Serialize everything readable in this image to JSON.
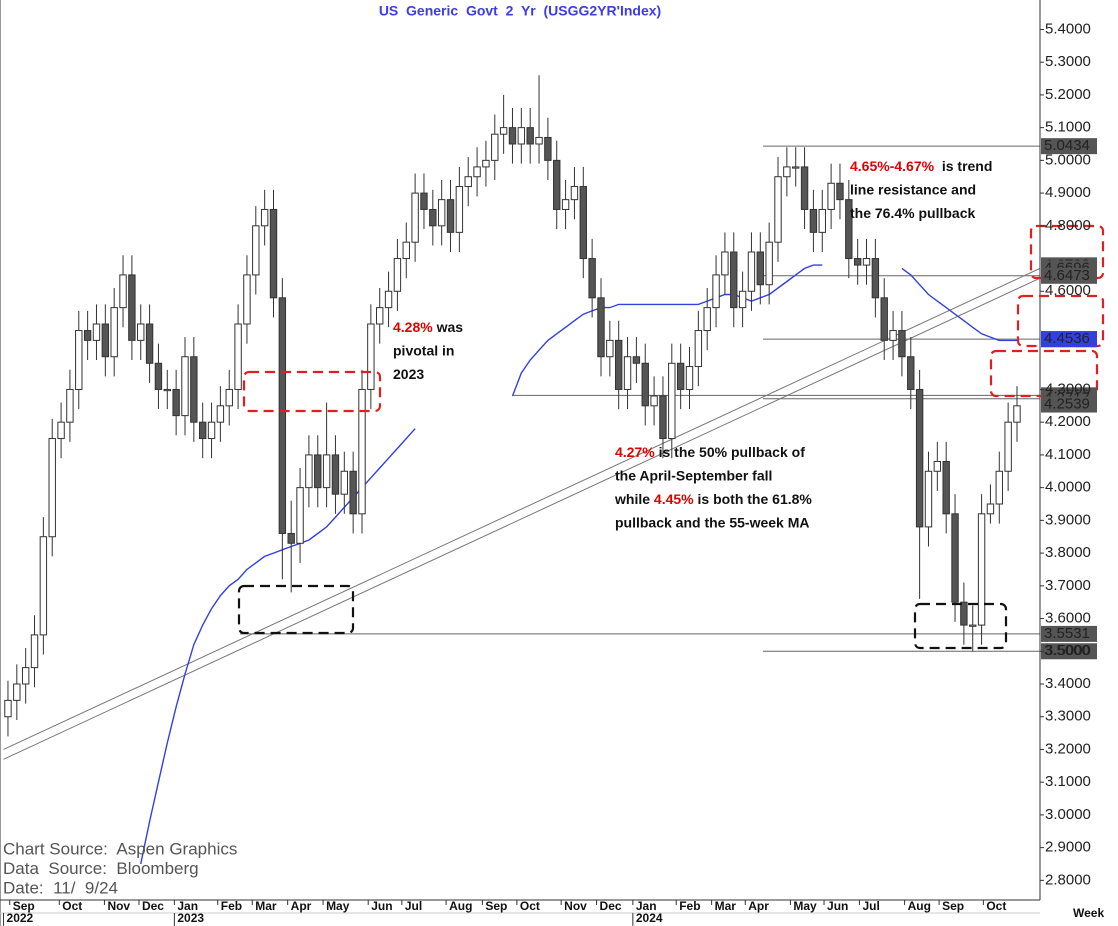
{
  "chart_data": {
    "type": "candlestick",
    "title": "US  Generic  Govt  2  Yr  (USGG2YR'Index)",
    "period_label": "Week",
    "sources": [
      "Chart Source:  Aspen Graphics",
      "Data  Source:  Bloomberg",
      "Date:  11/  9/24"
    ],
    "up_color": "#ffffff",
    "down_color": "#555555",
    "ma_color": "#3340e0",
    "open": [
      3.3,
      3.35,
      3.4,
      3.45,
      3.55,
      3.85,
      4.15,
      4.2,
      4.3,
      4.48,
      4.45,
      4.5,
      4.4,
      4.55,
      4.65,
      4.45,
      4.5,
      4.38,
      4.3,
      4.3,
      4.22,
      4.4,
      4.2,
      4.15,
      4.2,
      4.25,
      4.3,
      4.5,
      4.65,
      4.8,
      4.85,
      4.58,
      3.86,
      3.83,
      4.0,
      4.1,
      4.0,
      4.1,
      3.98,
      4.05,
      3.92,
      4.3,
      4.5,
      4.55,
      4.6,
      4.7,
      4.75,
      4.9,
      4.85,
      4.8,
      4.88,
      4.78,
      4.92,
      4.95,
      4.98,
      5.0,
      5.08,
      5.1,
      5.05,
      5.1,
      5.05,
      5.07,
      5.0,
      4.85,
      4.88,
      4.92,
      4.7,
      4.58,
      4.4,
      4.45,
      4.3,
      4.4,
      4.38,
      4.25,
      4.28,
      4.15,
      4.38,
      4.3,
      4.37,
      4.48,
      4.55,
      4.65,
      4.72,
      4.55,
      4.6,
      4.72,
      4.62,
      4.75,
      4.95,
      4.98,
      4.98,
      4.85,
      4.78,
      4.85,
      4.93,
      4.88,
      4.7,
      4.68,
      4.7,
      4.58,
      4.45,
      4.48,
      4.4,
      4.3,
      3.88,
      4.05,
      4.08,
      3.92,
      3.65,
      3.58,
      3.58,
      3.92,
      3.95,
      4.05,
      4.2
    ],
    "high": [
      3.41,
      3.46,
      3.51,
      3.61,
      3.91,
      4.21,
      4.26,
      4.36,
      4.54,
      4.54,
      4.56,
      4.56,
      4.61,
      4.71,
      4.71,
      4.56,
      4.56,
      4.44,
      4.36,
      4.36,
      4.46,
      4.46,
      4.26,
      4.26,
      4.31,
      4.36,
      4.56,
      4.71,
      4.86,
      4.91,
      4.91,
      4.64,
      3.96,
      4.06,
      4.16,
      4.16,
      4.26,
      4.16,
      4.11,
      4.11,
      4.36,
      4.56,
      4.61,
      4.66,
      4.76,
      4.81,
      4.96,
      4.96,
      4.91,
      4.94,
      4.94,
      4.98,
      5.01,
      5.04,
      5.06,
      5.14,
      5.2,
      5.16,
      5.16,
      5.16,
      5.26,
      5.13,
      5.06,
      4.94,
      4.98,
      4.98,
      4.76,
      4.64,
      4.51,
      4.51,
      4.46,
      4.46,
      4.44,
      4.34,
      4.34,
      4.44,
      4.44,
      4.43,
      4.54,
      4.61,
      4.71,
      4.78,
      4.78,
      4.66,
      4.78,
      4.78,
      4.81,
      5.01,
      5.04,
      5.04,
      5.04,
      4.91,
      4.91,
      4.99,
      4.99,
      4.94,
      4.76,
      4.76,
      4.76,
      4.64,
      4.54,
      4.54,
      4.46,
      4.36,
      4.11,
      4.14,
      4.14,
      3.98,
      3.71,
      3.64,
      3.98,
      4.01,
      4.11,
      4.26,
      4.31
    ],
    "low": [
      3.24,
      3.29,
      3.34,
      3.39,
      3.49,
      3.79,
      4.09,
      4.14,
      4.24,
      4.39,
      4.39,
      4.34,
      4.34,
      4.49,
      4.39,
      4.39,
      4.32,
      4.24,
      4.24,
      4.16,
      4.16,
      4.14,
      4.09,
      4.09,
      4.14,
      4.19,
      4.24,
      4.44,
      4.59,
      4.74,
      4.52,
      3.72,
      3.68,
      3.77,
      3.94,
      3.94,
      3.94,
      3.92,
      3.92,
      3.86,
      3.86,
      4.24,
      4.44,
      4.49,
      4.54,
      4.64,
      4.69,
      4.79,
      4.74,
      4.74,
      4.72,
      4.72,
      4.86,
      4.89,
      4.92,
      4.94,
      5.02,
      4.99,
      4.99,
      4.99,
      4.99,
      4.94,
      4.79,
      4.79,
      4.82,
      4.64,
      4.52,
      4.34,
      4.34,
      4.24,
      4.24,
      4.32,
      4.19,
      4.19,
      4.09,
      4.09,
      4.24,
      4.24,
      4.31,
      4.42,
      4.49,
      4.59,
      4.49,
      4.49,
      4.54,
      4.56,
      4.56,
      4.69,
      4.89,
      4.92,
      4.79,
      4.72,
      4.72,
      4.79,
      4.82,
      4.64,
      4.62,
      4.62,
      4.52,
      4.39,
      4.39,
      4.34,
      4.24,
      3.66,
      3.82,
      3.99,
      3.86,
      3.59,
      3.52,
      3.5,
      3.52,
      3.89,
      3.89,
      3.99,
      4.14
    ],
    "close": [
      3.35,
      3.4,
      3.45,
      3.55,
      3.85,
      4.15,
      4.2,
      4.3,
      4.48,
      4.45,
      4.5,
      4.4,
      4.55,
      4.65,
      4.45,
      4.5,
      4.38,
      4.3,
      4.3,
      4.22,
      4.4,
      4.2,
      4.15,
      4.2,
      4.25,
      4.3,
      4.5,
      4.65,
      4.8,
      4.85,
      4.58,
      3.86,
      3.83,
      4.0,
      4.1,
      4.0,
      4.1,
      3.98,
      4.05,
      3.92,
      4.3,
      4.5,
      4.55,
      4.6,
      4.7,
      4.75,
      4.9,
      4.85,
      4.8,
      4.88,
      4.78,
      4.92,
      4.95,
      4.98,
      5.0,
      5.08,
      5.1,
      5.05,
      5.1,
      5.05,
      5.07,
      5.0,
      4.85,
      4.88,
      4.92,
      4.7,
      4.58,
      4.4,
      4.45,
      4.3,
      4.4,
      4.38,
      4.25,
      4.28,
      4.15,
      4.38,
      4.3,
      4.37,
      4.48,
      4.55,
      4.65,
      4.72,
      4.55,
      4.6,
      4.72,
      4.62,
      4.75,
      4.95,
      4.98,
      4.98,
      4.85,
      4.78,
      4.85,
      4.93,
      4.88,
      4.7,
      4.68,
      4.7,
      4.58,
      4.45,
      4.48,
      4.4,
      4.3,
      3.88,
      4.05,
      4.08,
      3.92,
      3.65,
      3.58,
      3.58,
      3.92,
      3.95,
      4.05,
      4.2,
      4.25
    ],
    "ma": [
      null,
      null,
      null,
      null,
      null,
      null,
      null,
      null,
      null,
      null,
      null,
      null,
      null,
      null,
      null,
      2.85,
      2.98,
      3.1,
      3.22,
      3.33,
      3.43,
      3.52,
      3.58,
      3.63,
      3.67,
      3.7,
      3.72,
      3.75,
      3.77,
      3.79,
      3.8,
      3.81,
      3.82,
      3.83,
      3.84,
      3.86,
      3.88,
      3.91,
      3.94,
      3.97,
      4.0,
      4.03,
      4.06,
      4.09,
      4.12,
      4.15,
      4.18,
      null,
      null,
      null,
      null,
      null,
      null,
      null,
      null,
      null,
      null,
      4.28,
      4.35,
      4.39,
      4.42,
      4.45,
      4.47,
      4.49,
      4.51,
      4.53,
      4.54,
      4.55,
      4.55,
      4.56,
      4.56,
      4.56,
      4.56,
      4.56,
      4.56,
      4.56,
      4.56,
      4.56,
      4.56,
      4.57,
      4.58,
      4.59,
      4.59,
      4.58,
      4.57,
      4.58,
      4.59,
      4.61,
      4.63,
      4.65,
      4.67,
      4.68,
      4.68,
      null,
      null,
      null,
      null,
      null,
      null,
      null,
      null,
      4.67,
      4.65,
      4.62,
      4.59,
      4.57,
      4.55,
      4.53,
      4.51,
      4.49,
      4.47,
      4.46,
      4.45,
      4.45,
      4.45
    ],
    "trendlines": [
      {
        "x": [
          -0.5,
          116.6
        ],
        "y": [
          3.2,
          4.67
        ]
      },
      {
        "x": [
          -0.5,
          116.6
        ],
        "y": [
          3.17,
          4.64
        ]
      }
    ],
    "xlim": [
      -0.9,
      116.6
    ],
    "ylim": [
      2.74,
      5.49
    ],
    "xticks": [
      {
        "value": 0.2,
        "label": "Sep"
      },
      {
        "value": 5.8,
        "label": "Oct"
      },
      {
        "value": 10.9,
        "label": "Nov"
      },
      {
        "value": 14.8,
        "label": "Dec"
      },
      {
        "value": 18.8,
        "label": "Jan"
      },
      {
        "value": 23.7,
        "label": "Feb"
      },
      {
        "value": 27.6,
        "label": "Mar"
      },
      {
        "value": 31.6,
        "label": "Apr"
      },
      {
        "value": 35.6,
        "label": "May"
      },
      {
        "value": 40.7,
        "label": "Jun"
      },
      {
        "value": 44.5,
        "label": "Jul"
      },
      {
        "value": 49.5,
        "label": "Aug"
      },
      {
        "value": 53.6,
        "label": "Sep"
      },
      {
        "value": 57.5,
        "label": "Oct"
      },
      {
        "value": 62.5,
        "label": "Nov"
      },
      {
        "value": 66.5,
        "label": "Dec"
      },
      {
        "value": 70.6,
        "label": "Jan"
      },
      {
        "value": 75.5,
        "label": "Feb"
      },
      {
        "value": 79.5,
        "label": "Mar"
      },
      {
        "value": 83.3,
        "label": "Apr"
      },
      {
        "value": 88.4,
        "label": "May"
      },
      {
        "value": 92.2,
        "label": "Jun"
      },
      {
        "value": 96.2,
        "label": "Jul"
      },
      {
        "value": 101.3,
        "label": "Aug"
      },
      {
        "value": 105.2,
        "label": "Sep"
      },
      {
        "value": 110.2,
        "label": "Oct"
      }
    ],
    "year_ticks": [
      {
        "value": -0.5,
        "label": "2022"
      },
      {
        "value": 18.8,
        "label": "2023"
      },
      {
        "value": 70.6,
        "label": "2024"
      }
    ],
    "yticks": [
      {
        "value": 5.4,
        "label": "5.4000"
      },
      {
        "value": 5.3,
        "label": "5.3000"
      },
      {
        "value": 5.2,
        "label": "5.2000"
      },
      {
        "value": 5.1,
        "label": "5.1000"
      },
      {
        "value": 5.0,
        "label": "5.0000"
      },
      {
        "value": 4.9,
        "label": "4.9000"
      },
      {
        "value": 4.8,
        "label": "4.8000"
      },
      {
        "value": 4.6,
        "label": "4.6000"
      },
      {
        "value": 4.3,
        "label": "4.3000"
      },
      {
        "value": 4.2,
        "label": "4.2000"
      },
      {
        "value": 4.1,
        "label": "4.1000"
      },
      {
        "value": 4.0,
        "label": "4.0000"
      },
      {
        "value": 3.9,
        "label": "3.9000"
      },
      {
        "value": 3.8,
        "label": "3.8000"
      },
      {
        "value": 3.7,
        "label": "3.7000"
      },
      {
        "value": 3.6,
        "label": "3.6000"
      },
      {
        "value": 3.5,
        "label": "3.5000"
      },
      {
        "value": 3.4,
        "label": "3.4000"
      },
      {
        "value": 3.3,
        "label": "3.3000"
      },
      {
        "value": 3.2,
        "label": "3.2000"
      },
      {
        "value": 3.1,
        "label": "3.1000"
      },
      {
        "value": 3.0,
        "label": "3.0000"
      },
      {
        "value": 2.9,
        "label": "2.9000"
      },
      {
        "value": 2.8,
        "label": "2.8000"
      }
    ],
    "price_markers": [
      {
        "value": 5.0434,
        "color": "#555555",
        "from": 85.3
      },
      {
        "value": 4.6792,
        "color": "#555555"
      },
      {
        "value": 4.6696,
        "color": "#555555"
      },
      {
        "value": 4.6473,
        "color": "#555555",
        "from": 85.3
      },
      {
        "value": 4.4538,
        "color": "#555555",
        "from": 85.3
      },
      {
        "value": 4.4536,
        "color": "#3340e0"
      },
      {
        "value": 4.282,
        "label": "4.2820",
        "color": "#555555",
        "from": 57.0
      },
      {
        "value": 4.2717,
        "color": "#555555",
        "from": 85.3
      },
      {
        "value": 4.2539,
        "color": "#555555"
      },
      {
        "value": 3.5531,
        "color": "#555555",
        "from": 26.2
      },
      {
        "value": 3.5,
        "label": "3.5000",
        "color": "#555555",
        "from": 85.3
      }
    ],
    "annotations": [
      {
        "lines": [
          [
            {
              "text": "4.28%",
              "color": "#e00000"
            },
            {
              "text": " was"
            }
          ],
          [
            {
              "text": "pivotal in"
            }
          ],
          [
            {
              "text": "2023"
            }
          ]
        ]
      },
      {
        "lines": [
          [
            {
              "text": "4.27%",
              "color": "#e00000"
            },
            {
              "text": " is the 50% pullback of"
            }
          ],
          [
            {
              "text": "the April-September fall"
            }
          ],
          [
            {
              "text": "while "
            },
            {
              "text": "4.45%",
              "color": "#e00000"
            },
            {
              "text": " is both the 61.8%"
            }
          ],
          [
            {
              "text": "pullback and the 55-week MA"
            }
          ]
        ]
      },
      {
        "lines": [
          [
            {
              "text": "4.65%-4.67%",
              "color": "#e00000"
            },
            {
              "text": "  is trend"
            }
          ],
          [
            {
              "text": "line resistance and"
            }
          ],
          [
            {
              "text": "the 76.4% pullback"
            }
          ]
        ]
      }
    ]
  }
}
